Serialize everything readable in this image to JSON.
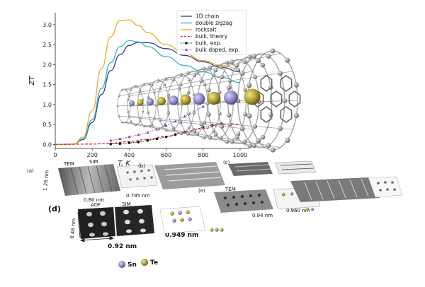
{
  "chart_data": {
    "type": "line",
    "title": "",
    "xlabel": "T, K",
    "ylabel": "ZT",
    "xlim": [
      0,
      1050
    ],
    "ylim": [
      -0.1,
      3.3
    ],
    "x_ticks": [
      "0",
      "200",
      "400",
      "600",
      "800",
      "1000"
    ],
    "y_ticks": [
      "0.0",
      "0.5",
      "1.0",
      "1.5",
      "2.0",
      "2.5",
      "3.0"
    ],
    "legend_position": "top-right",
    "series": [
      {
        "name": "1D chain",
        "color": "#2b3f9a",
        "style": "solid",
        "x": [
          0,
          100,
          150,
          200,
          250,
          300,
          350,
          400,
          450,
          500,
          600,
          700,
          800,
          900,
          1000
        ],
        "y": [
          0,
          0.01,
          0.12,
          0.55,
          1.25,
          1.85,
          2.25,
          2.48,
          2.56,
          2.55,
          2.4,
          2.23,
          2.07,
          1.93,
          1.82
        ]
      },
      {
        "name": "double zigzag",
        "color": "#2fb5c4",
        "style": "solid",
        "x": [
          0,
          100,
          150,
          200,
          250,
          300,
          350,
          400,
          450,
          500,
          600,
          700,
          800,
          900,
          1000
        ],
        "y": [
          0,
          0.01,
          0.14,
          0.62,
          1.4,
          2.05,
          2.45,
          2.6,
          2.57,
          2.45,
          2.2,
          1.98,
          1.82,
          1.68,
          1.55
        ]
      },
      {
        "name": "rocksalt",
        "color": "#f5a623",
        "style": "solid",
        "x": [
          0,
          100,
          150,
          200,
          250,
          300,
          350,
          400,
          450,
          500,
          600,
          700,
          800,
          900,
          1000
        ],
        "y": [
          0,
          0.01,
          0.18,
          0.85,
          1.9,
          2.7,
          3.1,
          3.12,
          2.98,
          2.8,
          2.5,
          2.28,
          2.1,
          1.98,
          1.88
        ]
      },
      {
        "name": "bulk, theory",
        "color": "#e0302b",
        "style": "dashed",
        "x": [
          0,
          200,
          300,
          400,
          500,
          600,
          700,
          800,
          900,
          950,
          1000
        ],
        "y": [
          0,
          0.01,
          0.03,
          0.07,
          0.13,
          0.2,
          0.3,
          0.4,
          0.5,
          0.52,
          0.5
        ]
      },
      {
        "name": "bulk, exp.",
        "color": "#111111",
        "style": "markers-dot",
        "x": [
          300,
          350,
          400,
          450,
          500,
          550,
          600,
          650,
          700,
          750,
          800,
          850,
          900
        ],
        "y": [
          0.01,
          0.02,
          0.04,
          0.06,
          0.1,
          0.14,
          0.19,
          0.25,
          0.31,
          0.37,
          0.43,
          0.48,
          0.52
        ]
      },
      {
        "name": "bulk doped, exp.",
        "color": "#8a3fb5",
        "style": "markers-triangle",
        "x": [
          300,
          350,
          400,
          450,
          500,
          550,
          600,
          650,
          700,
          750,
          800
        ],
        "y": [
          0.1,
          0.14,
          0.19,
          0.24,
          0.3,
          0.38,
          0.47,
          0.58,
          0.7,
          0.82,
          0.95
        ]
      }
    ]
  },
  "panels": {
    "a_label": "(a)",
    "a_title_left": "TEM",
    "a_title_right": "SIM",
    "a_scale_left": "0.80 nm",
    "a_scale_right": "0.795 nm",
    "a_side": "1.26 nm",
    "b_label": "(b)",
    "c_label": "(c)",
    "d_label": "(d)",
    "d_title_left": "ADF",
    "d_title_right": "SIM",
    "d_dim_left": "0.92 nm",
    "d_dim_right": "0.949 nm",
    "d_side": "0.46 nm",
    "e_label": "(e)",
    "e_title": "TEM",
    "e_scale_left": "0.94 nm",
    "e_scale_right": "0.960 nm"
  },
  "legend_atoms": {
    "sn_label": "Sn",
    "te_label": "Te",
    "sn_color": "#8b84c4",
    "te_color": "#a89a2c"
  }
}
